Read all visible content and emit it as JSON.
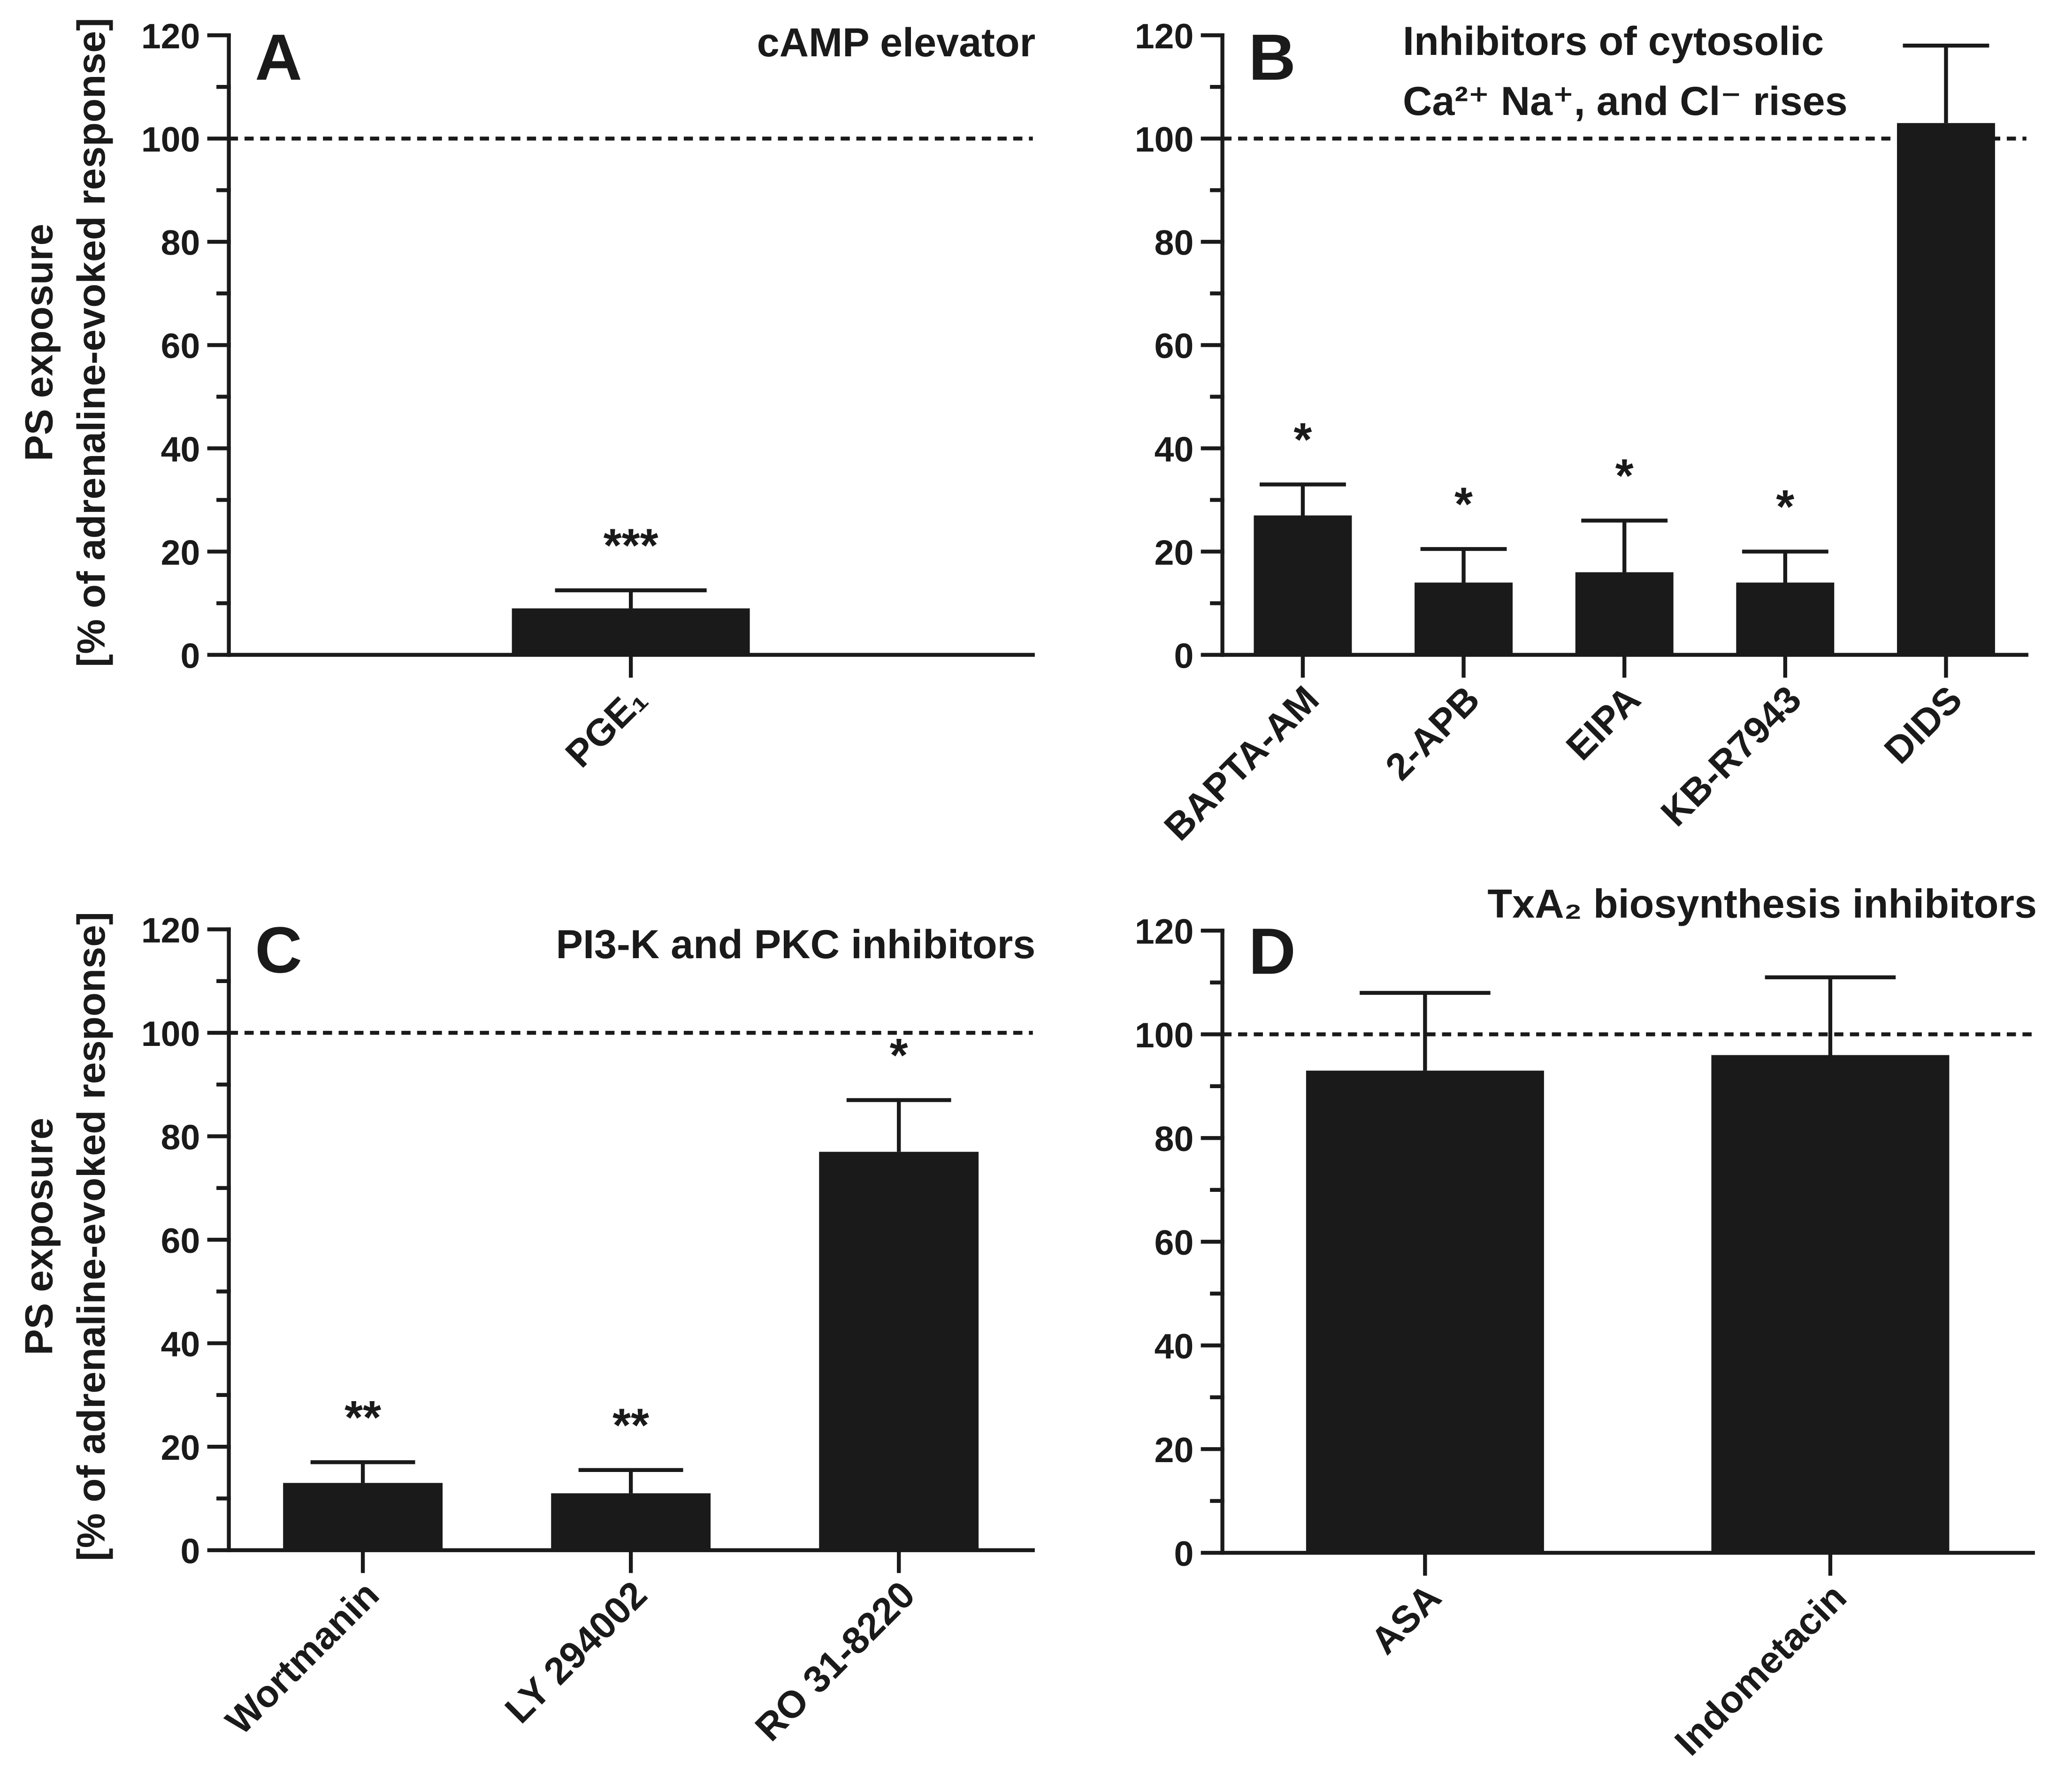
{
  "colors": {
    "ink": "#1a1a1a",
    "background": "#ffffff"
  },
  "chart_data": [
    {
      "panel_label": "A",
      "type": "bar",
      "title": [
        "cAMP elevator"
      ],
      "ylabel": [
        "PS exposure",
        "[% of adrenaline-evoked response]"
      ],
      "ylim": [
        0,
        120
      ],
      "yticks": [
        0,
        20,
        40,
        60,
        80,
        100,
        120
      ],
      "y_minor_step": 10,
      "reference_line": 100,
      "grid": false,
      "categories": [
        "PGE₁"
      ],
      "values": [
        9
      ],
      "errors": [
        3.5
      ],
      "significance": [
        "***"
      ]
    },
    {
      "panel_label": "B",
      "type": "bar",
      "title": [
        "Inhibitors of cytosolic",
        "Ca²⁺ Na⁺, and Cl⁻ rises"
      ],
      "ylim": [
        0,
        120
      ],
      "yticks": [
        0,
        20,
        40,
        60,
        80,
        100,
        120
      ],
      "y_minor_step": 10,
      "reference_line": 100,
      "grid": false,
      "categories": [
        "BAPTA-AM",
        "2-APB",
        "EIPA",
        "KB-R7943",
        "DIDS"
      ],
      "values": [
        27,
        14,
        16,
        14,
        103
      ],
      "errors": [
        6,
        6.5,
        10,
        6,
        15
      ],
      "significance": [
        "*",
        "*",
        "*",
        "*",
        null
      ]
    },
    {
      "panel_label": "C",
      "type": "bar",
      "title": [
        "PI3-K and PKC inhibitors"
      ],
      "ylabel": [
        "PS exposure",
        "[% of adrenaline-evoked response]"
      ],
      "ylim": [
        0,
        120
      ],
      "yticks": [
        0,
        20,
        40,
        60,
        80,
        100,
        120
      ],
      "y_minor_step": 10,
      "reference_line": 100,
      "grid": false,
      "categories": [
        "Wortmanin",
        "LY 294002",
        "RO 31-8220"
      ],
      "values": [
        13,
        11,
        77
      ],
      "errors": [
        4,
        4.5,
        10
      ],
      "significance": [
        "**",
        "**",
        "*"
      ]
    },
    {
      "panel_label": "D",
      "type": "bar",
      "title": [
        "TxA₂ biosynthesis inhibitors"
      ],
      "ylim": [
        0,
        120
      ],
      "yticks": [
        0,
        20,
        40,
        60,
        80,
        100,
        120
      ],
      "y_minor_step": 10,
      "reference_line": 100,
      "grid": false,
      "categories": [
        "ASA",
        "Indometacin"
      ],
      "values": [
        93,
        96
      ],
      "errors": [
        15,
        15
      ]
    }
  ]
}
